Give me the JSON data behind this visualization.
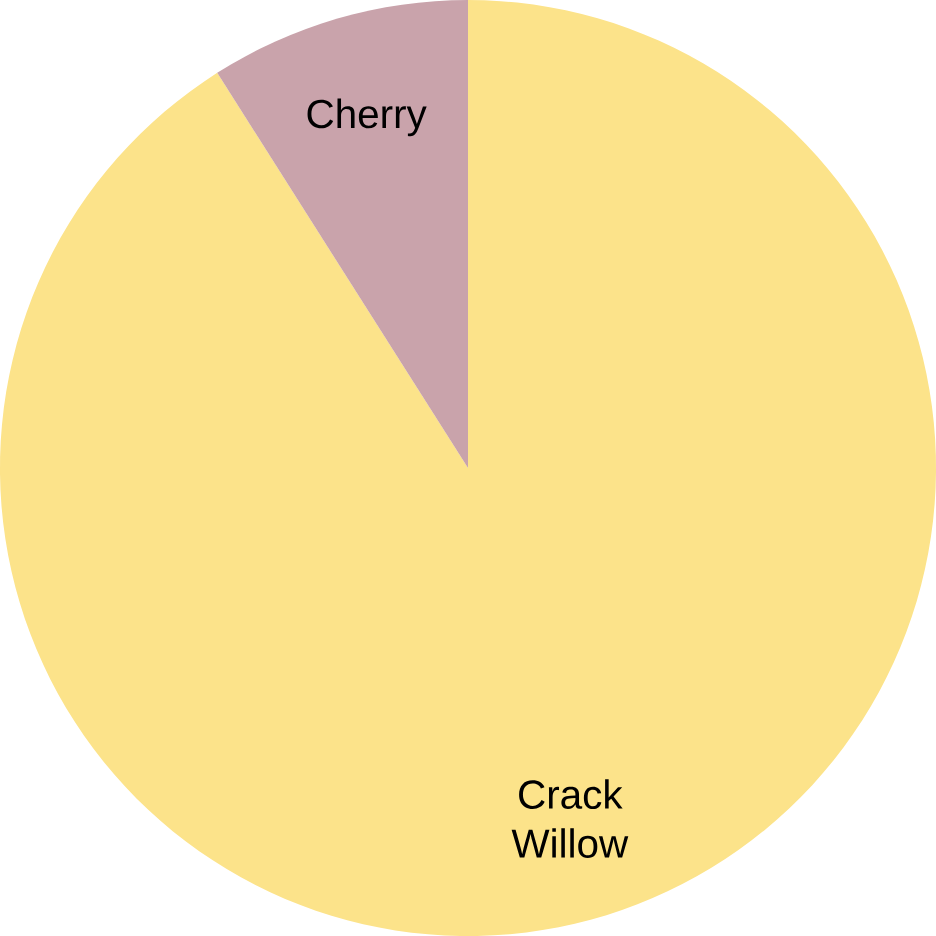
{
  "chart_data": {
    "type": "pie",
    "categories": [
      "Crack Willow",
      "Cherry"
    ],
    "values": [
      91,
      9
    ],
    "colors": [
      "#fce38a",
      "#c9a3ab"
    ]
  }
}
